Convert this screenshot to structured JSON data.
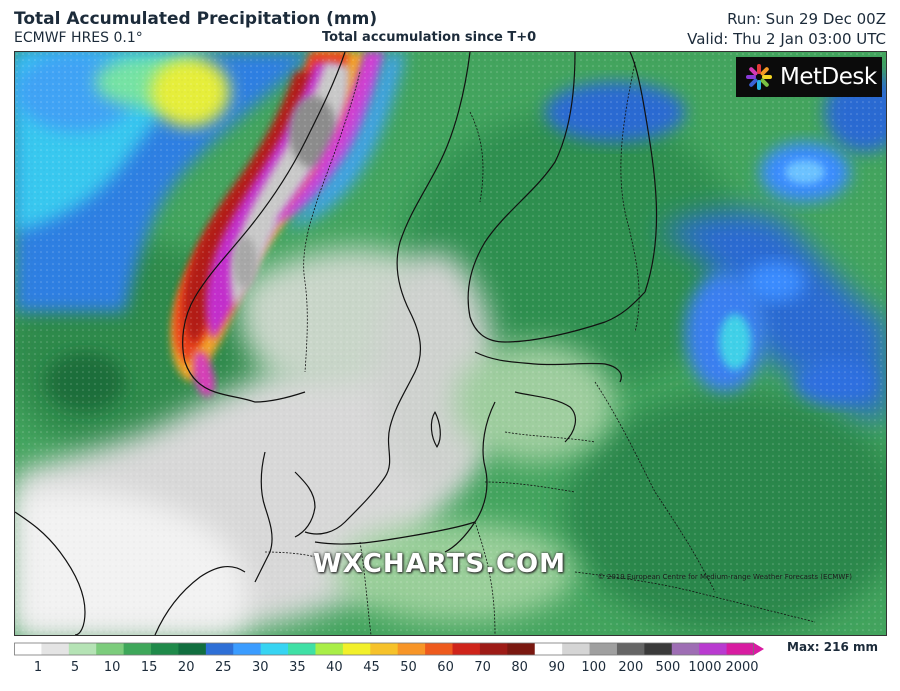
{
  "header": {
    "title": "Total Accumulated Precipitation (mm)",
    "model": "ECMWF HRES 0.1°",
    "accumulation": "Total accumulation since T+0",
    "run": "Run: Sun 29 Dec 00Z",
    "valid": "Valid: Thu 2 Jan 03:00 UTC"
  },
  "map": {
    "logo_text": "MetDesk",
    "watermark": "WXCHARTS.COM",
    "copyright": "© 2019 European Centre for Medium-range Weather Forecasts (ECMWF)"
  },
  "legend": {
    "ticks": [
      "1",
      "5",
      "10",
      "15",
      "20",
      "25",
      "30",
      "35",
      "40",
      "45",
      "50",
      "60",
      "70",
      "80",
      "90",
      "100",
      "200",
      "500",
      "1000",
      "2000"
    ],
    "max_label": "Max: 216 mm",
    "colors": [
      "#ffffff",
      "#e4e4e4",
      "#b5e3b5",
      "#7ccc7c",
      "#3ea75a",
      "#1f8a4a",
      "#116e3f",
      "#2e6fd6",
      "#3b9cff",
      "#37d4f2",
      "#3fe0a5",
      "#a9ee47",
      "#f2f02a",
      "#f6c22a",
      "#f79527",
      "#ee5a1d",
      "#cf241a",
      "#9d1b16",
      "#7a1810",
      "#ffffff",
      "#d5d5d5",
      "#9f9f9f",
      "#656565",
      "#3a3a3a",
      "#9e6eb4",
      "#b93bd0",
      "#d81ca1"
    ]
  }
}
